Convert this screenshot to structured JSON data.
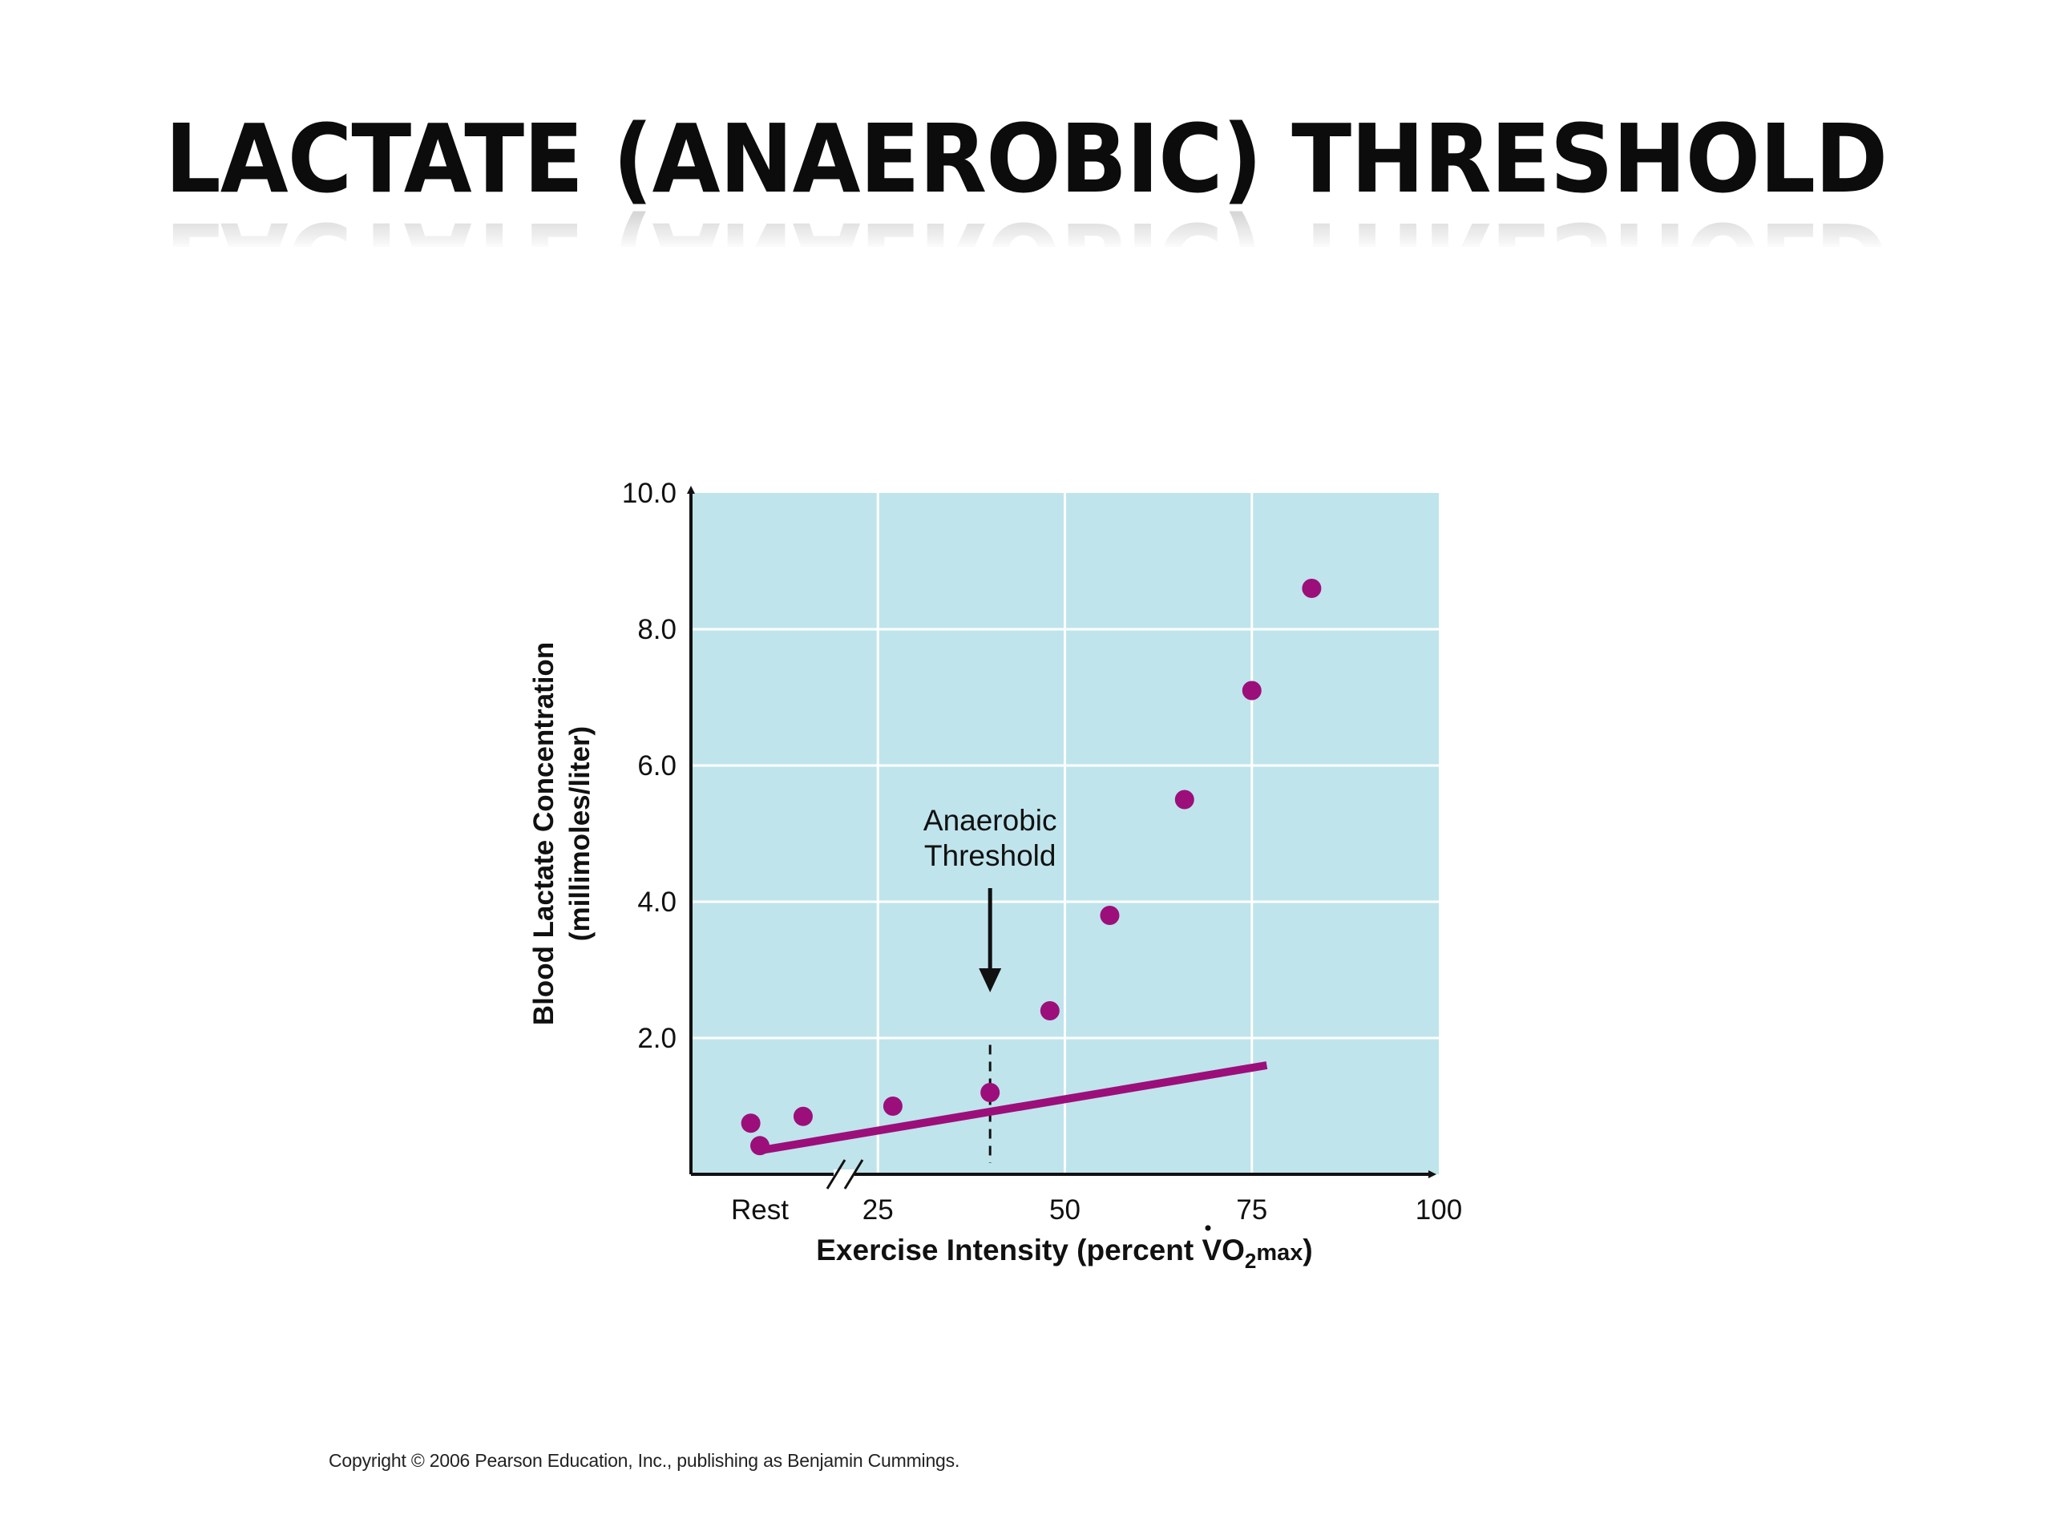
{
  "slide": {
    "title": "LACTATE (ANAEROBIC) THRESHOLD",
    "copyright": "Copyright © 2006 Pearson Education, Inc., publishing as Benjamin Cummings."
  },
  "colors": {
    "plot_background": "#bfe4ec",
    "grid": "#ffffff",
    "marker": "#9c0f7a",
    "axis": "#111111",
    "text": "#111111"
  },
  "chart_data": {
    "type": "scatter",
    "title": "",
    "xlabel": {
      "main": "Exercise Intensity (percent ",
      "symbol": "V",
      "o": "O",
      "subscript": "2",
      "suffix": "max",
      "close": ")"
    },
    "ylabel": [
      "Blood Lactate Concentration",
      "(millimoles/liter)"
    ],
    "x_tick_labels": [
      {
        "x": "Rest",
        "label": "Rest"
      },
      {
        "x": 25,
        "label": "25"
      },
      {
        "x": 50,
        "label": "50"
      },
      {
        "x": 75,
        "label": "75"
      },
      {
        "x": 100,
        "label": "100"
      }
    ],
    "y_tick_labels": [
      {
        "y": 2,
        "label": "2.0"
      },
      {
        "y": 4,
        "label": "4.0"
      },
      {
        "y": 6,
        "label": "6.0"
      },
      {
        "y": 8,
        "label": "8.0"
      },
      {
        "y": 10,
        "label": "10.0"
      }
    ],
    "xlim": [
      0,
      100
    ],
    "ylim": [
      0,
      10
    ],
    "x_axis_break": true,
    "grid": true,
    "points": [
      {
        "x": "Rest",
        "y": 0.42
      },
      {
        "x": 8,
        "y": 0.75
      },
      {
        "x": 15,
        "y": 0.85
      },
      {
        "x": 27,
        "y": 1.0
      },
      {
        "x": 40,
        "y": 1.2
      },
      {
        "x": 48,
        "y": 2.4
      },
      {
        "x": 56,
        "y": 3.8
      },
      {
        "x": 66,
        "y": 5.5
      },
      {
        "x": 75,
        "y": 7.1
      },
      {
        "x": 83,
        "y": 8.6
      }
    ],
    "trend_line": {
      "x": [
        "Rest",
        77
      ],
      "y": [
        0.35,
        1.6
      ]
    },
    "threshold": {
      "x": 40,
      "label": [
        "Anaerobic",
        "Threshold"
      ]
    }
  }
}
